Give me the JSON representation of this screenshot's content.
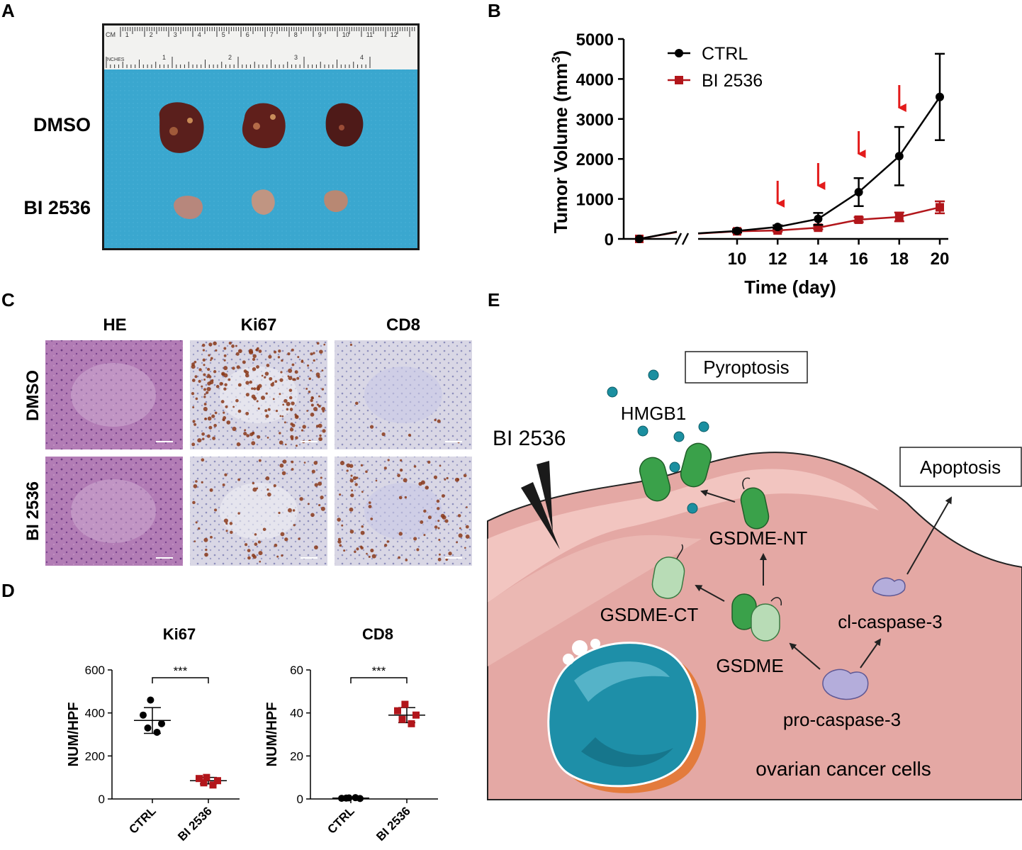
{
  "panels": {
    "A": {
      "letter": "A",
      "row_labels": [
        "DMSO",
        "BI 2536"
      ],
      "ruler": {
        "cm_label": "CM",
        "inch_label": "INCHES",
        "cm_ticks": [
          "1",
          "2",
          "3",
          "4",
          "5",
          "6",
          "7",
          "8",
          "9",
          "10",
          "11",
          "12"
        ],
        "inch_ticks": [
          "1",
          "2",
          "3",
          "4"
        ]
      },
      "colors": {
        "background": "#3aa7cf",
        "tumor_dmso": "#5a1f1c",
        "tumor_bi": "#b7877c"
      }
    },
    "B": {
      "letter": "B"
    },
    "C": {
      "letter": "C",
      "column_labels": [
        "HE",
        "Ki67",
        "CD8"
      ],
      "row_labels": [
        "DMSO",
        "BI 2536"
      ],
      "colors": {
        "he": "#b27cb5",
        "ihc_bg": "#d8d6e3",
        "ihc_stain": "#8a3a1a"
      }
    },
    "D": {
      "letter": "D"
    },
    "E": {
      "letter": "E",
      "labels": {
        "drug": "BI 2536",
        "pyroptosis": "Pyroptosis",
        "apoptosis": "Apoptosis",
        "hmgb1": "HMGB1",
        "gsdme_nt": "GSDME-NT",
        "gsdme_ct": "GSDME-CT",
        "gsdme": "GSDME",
        "cl_caspase": "cl-caspase-3",
        "pro_caspase": "pro-caspase-3",
        "cells": "ovarian cancer cells"
      },
      "colors": {
        "cell_fill": "#e4a8a4",
        "membrane": "#f3c8c3",
        "nucleus": "#1e8fa8",
        "gsdme": "#3aa14a",
        "caspase": "#b4addb",
        "hmgb1": "#1b8fa0"
      }
    }
  },
  "chart_data": [
    {
      "type": "line",
      "ylabel": "Tumor Volume (mm",
      "ylabel_sup": "3",
      "ylabel_end": ")",
      "xlabel": "Time (day)",
      "x": [
        0,
        10,
        12,
        14,
        16,
        18,
        20
      ],
      "x_tick_labels": [
        "10",
        "12",
        "14",
        "16",
        "18",
        "20"
      ],
      "y_tick_labels": [
        "0",
        "1000",
        "2000",
        "3000",
        "4000",
        "5000"
      ],
      "ylim": [
        0,
        5000
      ],
      "axis_break": true,
      "series": [
        {
          "name": "CTRL",
          "color": "#000000",
          "marker": "circle",
          "values": [
            0,
            200,
            300,
            500,
            1170,
            2070,
            3550
          ],
          "errors": [
            0,
            40,
            40,
            150,
            350,
            730,
            1080
          ]
        },
        {
          "name": "BI 2536",
          "color": "#b2161b",
          "marker": "square",
          "values": [
            0,
            190,
            210,
            280,
            480,
            550,
            790
          ],
          "errors": [
            0,
            30,
            30,
            40,
            60,
            110,
            150
          ]
        }
      ],
      "annotations": {
        "treatment_arrow_days": [
          12,
          14,
          16,
          18
        ],
        "arrow_color": "#e31b1b"
      },
      "legend_position": "top-left"
    },
    {
      "type": "scatter",
      "title": "Ki67",
      "ylabel": "NUM/HPF",
      "categories": [
        "CTRL",
        "BI 2536"
      ],
      "y_tick_labels": [
        "0",
        "200",
        "400",
        "600"
      ],
      "ylim": [
        0,
        600
      ],
      "points": [
        [
          460,
          390,
          350,
          330,
          310
        ],
        [
          100,
          95,
          85,
          75,
          65
        ]
      ],
      "mean": [
        365,
        85
      ],
      "sd": [
        60,
        15
      ],
      "significance": "***",
      "colors": [
        "#000000",
        "#b2161b"
      ]
    },
    {
      "type": "scatter",
      "title": "CD8",
      "ylabel": "NUM/HPF",
      "categories": [
        "CTRL",
        "BI 2536"
      ],
      "y_tick_labels": [
        "0",
        "20",
        "40",
        "60"
      ],
      "ylim": [
        0,
        60
      ],
      "points": [
        [
          0.5,
          0.3,
          0.2,
          0.4,
          0.6
        ],
        [
          44,
          41,
          39,
          37,
          35
        ]
      ],
      "mean": [
        0.4,
        39
      ],
      "sd": [
        0.3,
        3.5
      ],
      "significance": "***",
      "colors": [
        "#000000",
        "#b2161b"
      ]
    }
  ]
}
